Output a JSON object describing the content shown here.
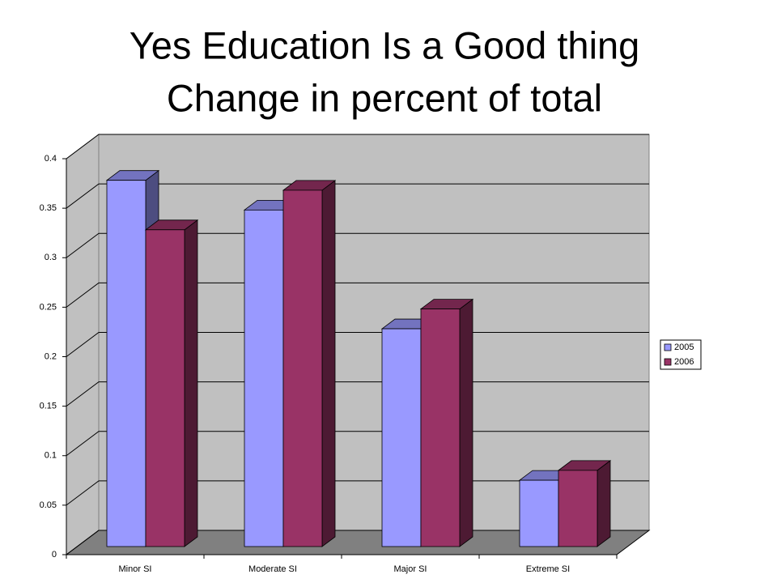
{
  "chart_data": {
    "type": "bar3d",
    "title": "Yes Education Is a Good thing",
    "subtitle": "Change in percent of total",
    "categories": [
      "Minor SI",
      "Moderate SI",
      "Major SI",
      "Extreme SI"
    ],
    "series": [
      {
        "name": "2005",
        "color": "#9999ff",
        "values": [
          0.37,
          0.34,
          0.22,
          0.067
        ]
      },
      {
        "name": "2006",
        "color": "#993366",
        "values": [
          0.32,
          0.36,
          0.24,
          0.077
        ]
      }
    ],
    "ylim": [
      0,
      0.4
    ],
    "yticks": [
      0,
      0.05,
      0.1,
      0.15,
      0.2,
      0.25,
      0.3,
      0.35,
      0.4
    ],
    "grid": true,
    "legend": "right"
  }
}
